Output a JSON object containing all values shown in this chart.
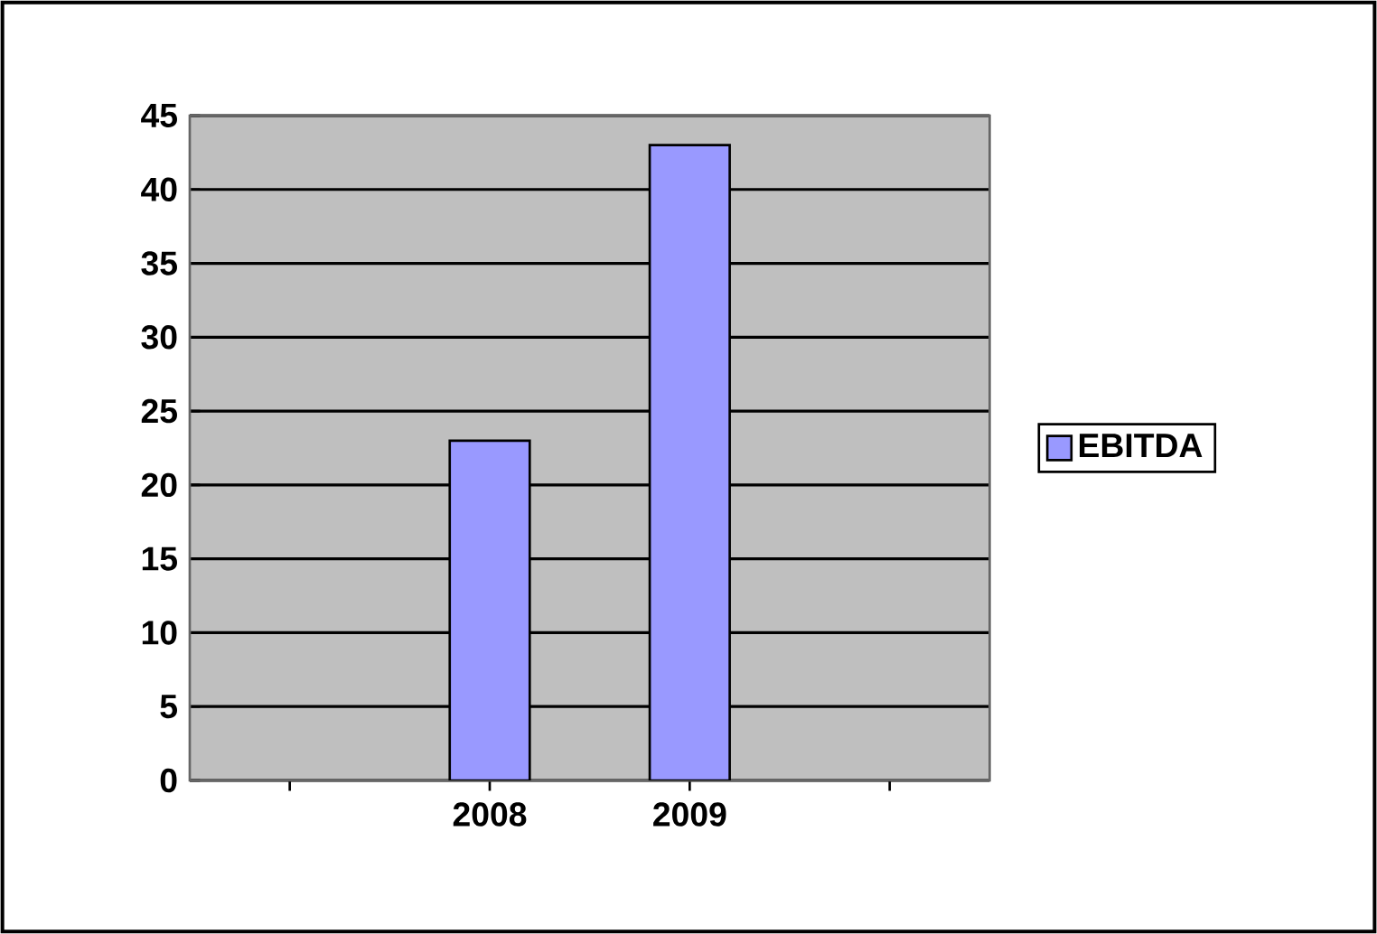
{
  "chart_data": {
    "type": "bar",
    "categories": [
      null,
      "2008",
      "2009",
      null
    ],
    "series": [
      {
        "name": "EBITDA",
        "color": "#9999ff",
        "values": [
          null,
          23,
          43,
          null
        ]
      }
    ],
    "ylim": [
      0,
      45
    ],
    "yticks": [
      0,
      5,
      10,
      15,
      20,
      25,
      30,
      35,
      40,
      45
    ],
    "grid": "y",
    "legend": "right"
  }
}
